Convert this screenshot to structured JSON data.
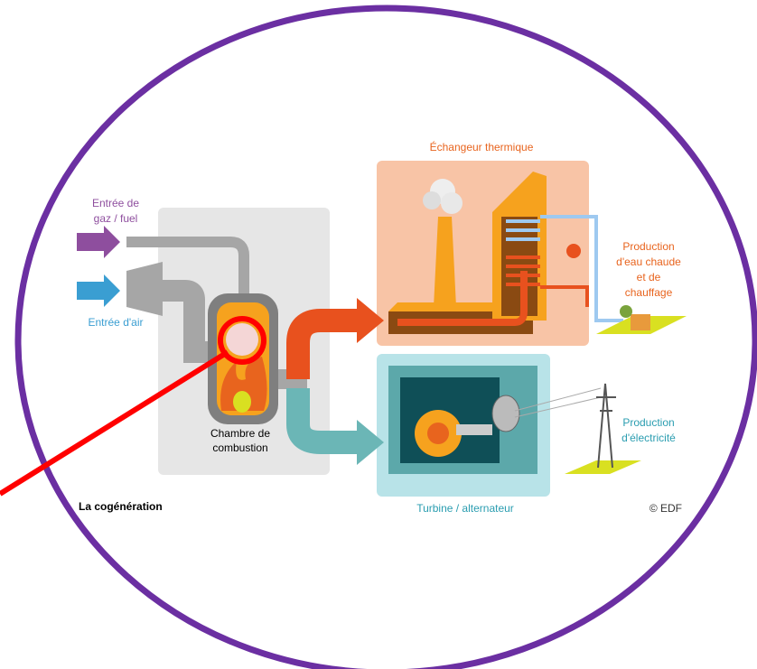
{
  "labels": {
    "gas_input": [
      "Entrée de",
      "gaz / fuel"
    ],
    "air_input": "Entrée d'air",
    "combustion_chamber": [
      "Chambre de",
      "combustion"
    ],
    "heat_exchanger": "Échangeur thermique",
    "hot_water": [
      "Production",
      "d'eau chaude",
      "et de",
      "chauffage"
    ],
    "electricity": [
      "Production",
      "d'électricité"
    ],
    "turbine": "Turbine / alternateur",
    "title": "La cogénération",
    "credit": "© EDF"
  }
}
